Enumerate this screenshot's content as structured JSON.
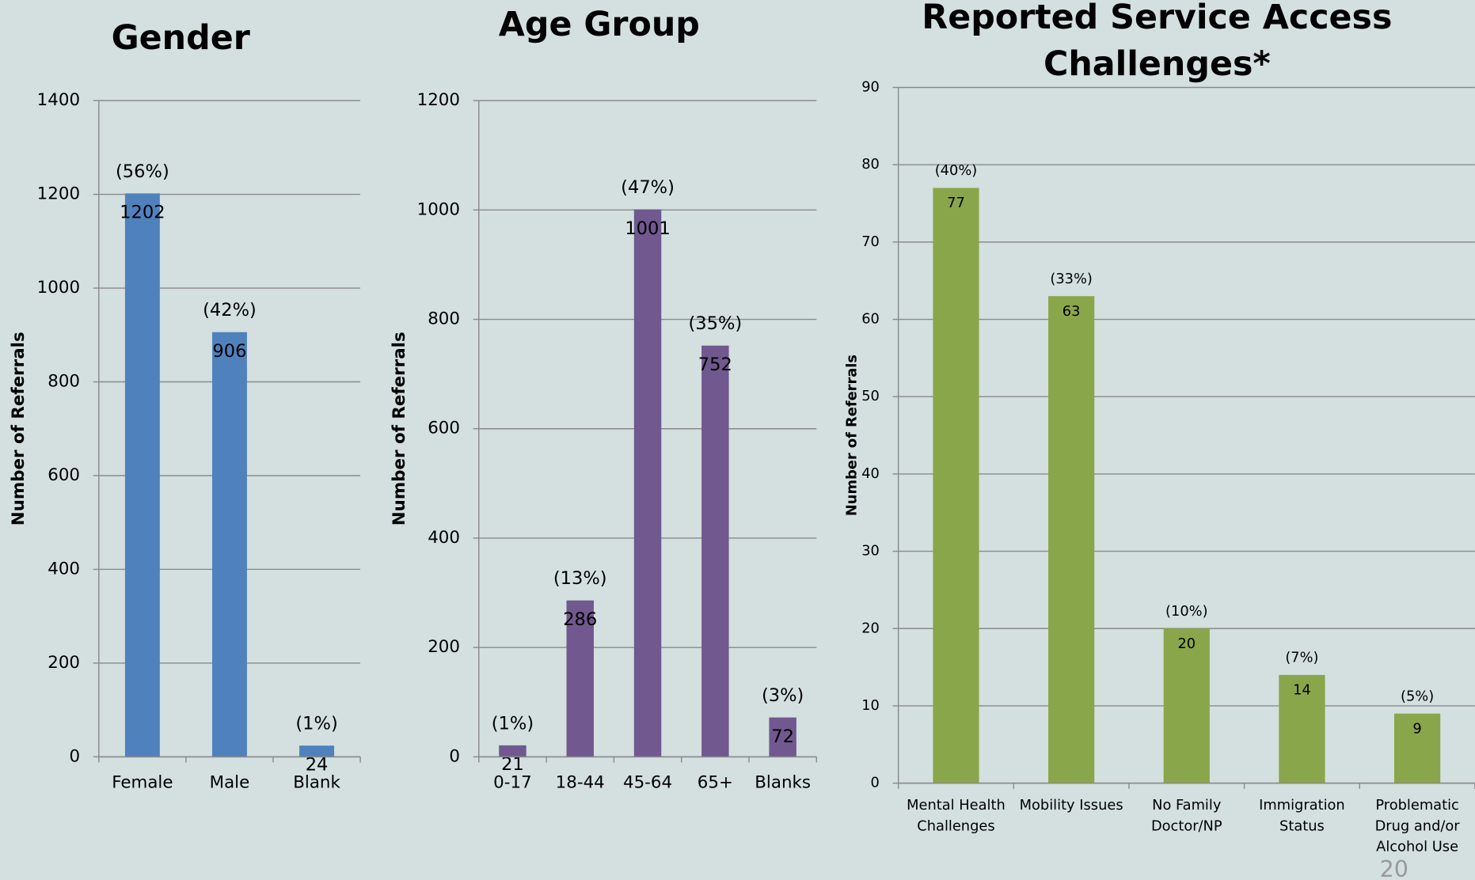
{
  "chart_data": [
    {
      "type": "bar",
      "title": "Gender",
      "y_label": "Number of Referrals",
      "categories": [
        "Female",
        "Male",
        "Blank"
      ],
      "values": [
        1202,
        906,
        24
      ],
      "percent_labels": [
        "(56%)",
        "(42%)",
        "(1%)"
      ],
      "color": "#4f81bd",
      "ylim": [
        0,
        1400
      ],
      "yticks": [
        0,
        200,
        400,
        600,
        800,
        1000,
        1200,
        1400
      ],
      "grid": true
    },
    {
      "type": "bar",
      "title": "Age Group",
      "y_label": "Number of Referrals",
      "categories": [
        "0-17",
        "18-44",
        "45-64",
        "65+",
        "Blanks"
      ],
      "values": [
        21,
        286,
        1001,
        752,
        72
      ],
      "percent_labels": [
        "(1%)",
        "(13%)",
        "(47%)",
        "(35%)",
        "(3%)"
      ],
      "color": "#71588f",
      "ylim": [
        0,
        1200
      ],
      "yticks": [
        0,
        200,
        400,
        600,
        800,
        1000,
        1200
      ],
      "grid": true
    },
    {
      "type": "bar",
      "title": "Reported Service Access Challenges*",
      "y_label": "Number of Referrals",
      "categories": [
        "Mental Health Challenges",
        "Mobility Issues",
        "No Family Doctor/NP",
        "Immigration Status",
        "Problematic Drug and/or Alcohol Use"
      ],
      "values": [
        77,
        63,
        20,
        14,
        9
      ],
      "percent_labels": [
        "(40%)",
        "(33%)",
        "(10%)",
        "(7%)",
        "(5%)"
      ],
      "color": "#8aa64a",
      "ylim": [
        0,
        90
      ],
      "yticks": [
        0,
        10,
        20,
        30,
        40,
        50,
        60,
        70,
        80,
        90
      ],
      "grid": true
    }
  ],
  "page_number": "20"
}
